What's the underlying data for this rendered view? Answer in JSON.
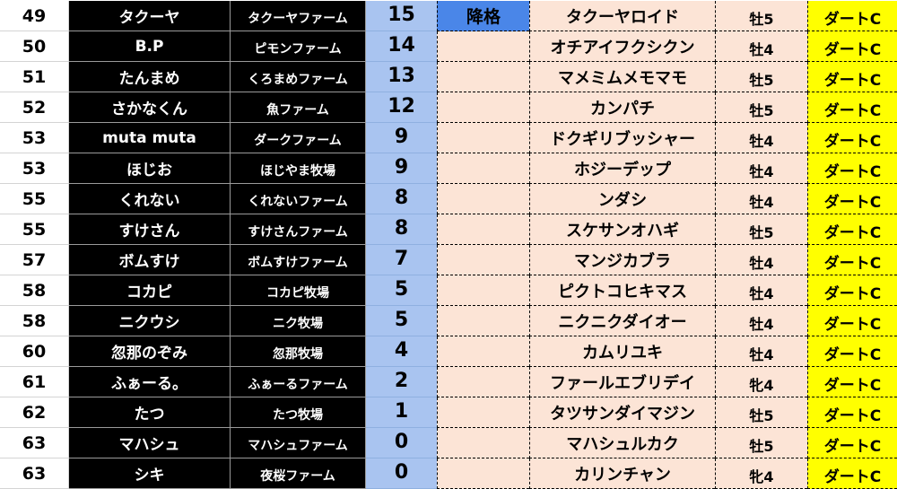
{
  "colors": {
    "name_bg": "#000000",
    "points_bg": "#a9c4f0",
    "horse_bg": "#fce4d6",
    "demote_bg": "#4a86e8",
    "grade_bg": "#ffff00"
  },
  "rows": [
    {
      "rank": "49",
      "name": "タクーヤ",
      "farm": "タクーヤファーム",
      "points": "15",
      "status": "降格",
      "horse": "タクーヤロイド",
      "sex": "牡5",
      "grade": "ダートC"
    },
    {
      "rank": "50",
      "name": "B.P",
      "farm": "ピモンファーム",
      "points": "14",
      "status": "",
      "horse": "オチアイフクシクン",
      "sex": "牡4",
      "grade": "ダートC"
    },
    {
      "rank": "51",
      "name": "たんまめ",
      "farm": "くろまめファーム",
      "points": "13",
      "status": "",
      "horse": "マメミムメモマモ",
      "sex": "牡5",
      "grade": "ダートC"
    },
    {
      "rank": "52",
      "name": "さかなくん",
      "farm": "魚ファーム",
      "points": "12",
      "status": "",
      "horse": "カンパチ",
      "sex": "牡5",
      "grade": "ダートC"
    },
    {
      "rank": "53",
      "name": "muta muta",
      "farm": "ダークファーム",
      "points": "9",
      "status": "",
      "horse": "ドクギリブッシャー",
      "sex": "牡4",
      "grade": "ダートC"
    },
    {
      "rank": "53",
      "name": "ほじお",
      "farm": "ほじやま牧場",
      "points": "9",
      "status": "",
      "horse": "ホジーデップ",
      "sex": "牡4",
      "grade": "ダートC"
    },
    {
      "rank": "55",
      "name": "くれない",
      "farm": "くれないファーム",
      "points": "8",
      "status": "",
      "horse": "ンダシ",
      "sex": "牡4",
      "grade": "ダートC"
    },
    {
      "rank": "55",
      "name": "すけさん",
      "farm": "すけさんファーム",
      "points": "8",
      "status": "",
      "horse": "スケサンオハギ",
      "sex": "牡5",
      "grade": "ダートC"
    },
    {
      "rank": "57",
      "name": "ボムすけ",
      "farm": "ボムすけファーム",
      "points": "7",
      "status": "",
      "horse": "マンジカブラ",
      "sex": "牡4",
      "grade": "ダートC"
    },
    {
      "rank": "58",
      "name": "コカピ",
      "farm": "コカピ牧場",
      "points": "5",
      "status": "",
      "horse": "ピクトコヒキマス",
      "sex": "牡4",
      "grade": "ダートC"
    },
    {
      "rank": "58",
      "name": "ニクウシ",
      "farm": "ニク牧場",
      "points": "5",
      "status": "",
      "horse": "ニクニクダイオー",
      "sex": "牡4",
      "grade": "ダートC"
    },
    {
      "rank": "60",
      "name": "忽那のぞみ",
      "farm": "忽那牧場",
      "points": "4",
      "status": "",
      "horse": "カムリユキ",
      "sex": "牡4",
      "grade": "ダートC"
    },
    {
      "rank": "61",
      "name": "ふぁーる。",
      "farm": "ふぁーるファーム",
      "points": "2",
      "status": "",
      "horse": "ファールエブリデイ",
      "sex": "牝4",
      "grade": "ダートC"
    },
    {
      "rank": "62",
      "name": "たつ",
      "farm": "たつ牧場",
      "points": "1",
      "status": "",
      "horse": "タツサンダイマジン",
      "sex": "牡5",
      "grade": "ダートC"
    },
    {
      "rank": "63",
      "name": "マハシュ",
      "farm": "マハシュファーム",
      "points": "0",
      "status": "",
      "horse": "マハシュルカク",
      "sex": "牡5",
      "grade": "ダートC"
    },
    {
      "rank": "63",
      "name": "シキ",
      "farm": "夜桜ファーム",
      "points": "0",
      "status": "",
      "horse": "カリンチャン",
      "sex": "牝4",
      "grade": "ダートC"
    }
  ]
}
